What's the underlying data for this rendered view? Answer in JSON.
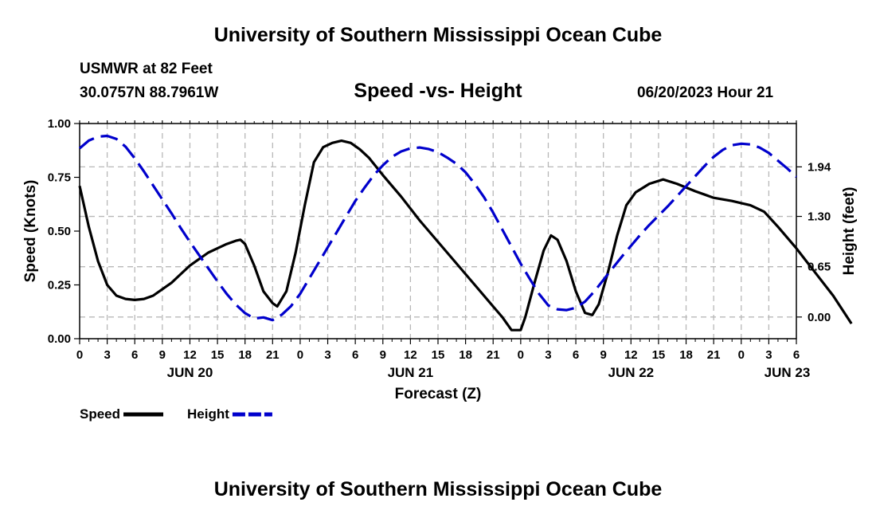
{
  "header": {
    "title": "University of Southern Mississippi Ocean Cube",
    "station": "USMWR at 82 Feet",
    "coords": "30.0757N  88.7961W",
    "subtitle": "Speed -vs- Height",
    "datetime": "06/20/2023 Hour 21"
  },
  "footer": {
    "title": "University of Southern Mississippi Ocean Cube"
  },
  "chart_data": {
    "type": "line",
    "title": "Speed -vs- Height",
    "xlabel": "Forecast (Z)",
    "ylabel": "Speed (Knots)",
    "y2label": "Height (feet)",
    "x_range_hours": [
      0,
      78
    ],
    "ylim": [
      0,
      1
    ],
    "y2lim": [
      -0.28,
      2.5
    ],
    "grid": true,
    "x_ticks": [
      {
        "h": 0,
        "label": "0"
      },
      {
        "h": 3,
        "label": "3"
      },
      {
        "h": 6,
        "label": "6"
      },
      {
        "h": 9,
        "label": "9"
      },
      {
        "h": 12,
        "label": "12"
      },
      {
        "h": 15,
        "label": "15"
      },
      {
        "h": 18,
        "label": "18"
      },
      {
        "h": 21,
        "label": "21"
      },
      {
        "h": 24,
        "label": "0"
      },
      {
        "h": 27,
        "label": "3"
      },
      {
        "h": 30,
        "label": "6"
      },
      {
        "h": 33,
        "label": "9"
      },
      {
        "h": 36,
        "label": "12"
      },
      {
        "h": 39,
        "label": "15"
      },
      {
        "h": 42,
        "label": "18"
      },
      {
        "h": 45,
        "label": "21"
      },
      {
        "h": 48,
        "label": "0"
      },
      {
        "h": 51,
        "label": "3"
      },
      {
        "h": 54,
        "label": "6"
      },
      {
        "h": 57,
        "label": "9"
      },
      {
        "h": 60,
        "label": "12"
      },
      {
        "h": 63,
        "label": "15"
      },
      {
        "h": 66,
        "label": "18"
      },
      {
        "h": 69,
        "label": "21"
      },
      {
        "h": 72,
        "label": "0"
      },
      {
        "h": 75,
        "label": "3"
      },
      {
        "h": 78,
        "label": "6"
      }
    ],
    "date_labels": [
      {
        "h": 12,
        "label": "JUN 20"
      },
      {
        "h": 36,
        "label": "JUN 21"
      },
      {
        "h": 60,
        "label": "JUN 22"
      },
      {
        "h": 77,
        "label": "JUN 23"
      }
    ],
    "y_ticks": [
      {
        "v": 0,
        "label": "0.00"
      },
      {
        "v": 0.25,
        "label": "0.25"
      },
      {
        "v": 0.5,
        "label": "0.50"
      },
      {
        "v": 0.75,
        "label": "0.75"
      },
      {
        "v": 1,
        "label": "1.00"
      }
    ],
    "y2_ticks": [
      {
        "v": 0,
        "label": "0.00"
      },
      {
        "v": 0.65,
        "label": "0.65"
      },
      {
        "v": 1.3,
        "label": "1.30"
      },
      {
        "v": 1.94,
        "label": "1.94"
      }
    ],
    "series": [
      {
        "name": "Speed",
        "axis": "left",
        "color": "#000000",
        "dash": "solid",
        "points": [
          [
            0,
            0.71
          ],
          [
            1,
            0.52
          ],
          [
            2,
            0.36
          ],
          [
            3,
            0.25
          ],
          [
            4,
            0.2
          ],
          [
            5,
            0.185
          ],
          [
            6,
            0.18
          ],
          [
            7,
            0.185
          ],
          [
            8,
            0.2
          ],
          [
            9,
            0.23
          ],
          [
            10,
            0.26
          ],
          [
            11,
            0.3
          ],
          [
            12,
            0.34
          ],
          [
            13,
            0.37
          ],
          [
            14,
            0.4
          ],
          [
            15,
            0.42
          ],
          [
            16,
            0.44
          ],
          [
            17,
            0.455
          ],
          [
            17.5,
            0.46
          ],
          [
            18,
            0.44
          ],
          [
            19,
            0.34
          ],
          [
            20,
            0.22
          ],
          [
            21,
            0.165
          ],
          [
            21.5,
            0.15
          ],
          [
            22.5,
            0.22
          ],
          [
            23.5,
            0.4
          ],
          [
            24.5,
            0.62
          ],
          [
            25.5,
            0.82
          ],
          [
            26.5,
            0.89
          ],
          [
            27.5,
            0.91
          ],
          [
            28.5,
            0.92
          ],
          [
            29.5,
            0.91
          ],
          [
            30.5,
            0.88
          ],
          [
            31.5,
            0.84
          ],
          [
            33,
            0.76
          ],
          [
            35,
            0.66
          ],
          [
            37,
            0.55
          ],
          [
            39,
            0.45
          ],
          [
            41,
            0.35
          ],
          [
            43,
            0.25
          ],
          [
            45,
            0.15
          ],
          [
            46,
            0.1
          ],
          [
            47,
            0.04
          ],
          [
            48,
            0.04
          ],
          [
            48.5,
            0.1
          ],
          [
            49.5,
            0.26
          ],
          [
            50.5,
            0.41
          ],
          [
            51.3,
            0.48
          ],
          [
            52,
            0.46
          ],
          [
            53,
            0.36
          ],
          [
            54,
            0.22
          ],
          [
            55,
            0.12
          ],
          [
            55.8,
            0.11
          ],
          [
            56.5,
            0.16
          ],
          [
            57.5,
            0.31
          ],
          [
            58.5,
            0.48
          ],
          [
            59.5,
            0.62
          ],
          [
            60.5,
            0.68
          ],
          [
            62,
            0.72
          ],
          [
            63.5,
            0.74
          ],
          [
            65,
            0.72
          ],
          [
            67,
            0.685
          ],
          [
            69,
            0.655
          ],
          [
            71,
            0.64
          ],
          [
            73,
            0.62
          ],
          [
            74.5,
            0.59
          ],
          [
            76,
            0.52
          ],
          [
            78,
            0.42
          ],
          [
            80,
            0.31
          ],
          [
            82,
            0.2
          ],
          [
            84,
            0.07
          ]
        ]
      },
      {
        "name": "Height",
        "axis": "right",
        "color": "#0000cc",
        "dash": "dashed",
        "points": [
          [
            0,
            2.18
          ],
          [
            1,
            2.28
          ],
          [
            2,
            2.33
          ],
          [
            3,
            2.34
          ],
          [
            4,
            2.3
          ],
          [
            5,
            2.2
          ],
          [
            6,
            2.05
          ],
          [
            7,
            1.88
          ],
          [
            8,
            1.7
          ],
          [
            9,
            1.52
          ],
          [
            10,
            1.34
          ],
          [
            11,
            1.15
          ],
          [
            12,
            0.97
          ],
          [
            13,
            0.8
          ],
          [
            14,
            0.63
          ],
          [
            15,
            0.46
          ],
          [
            16,
            0.3
          ],
          [
            17,
            0.16
          ],
          [
            18,
            0.05
          ],
          [
            19,
            -0.02
          ],
          [
            20,
            -0.005
          ],
          [
            21,
            -0.04
          ],
          [
            22,
            0.03
          ],
          [
            23,
            0.14
          ],
          [
            24,
            0.3
          ],
          [
            25,
            0.5
          ],
          [
            26,
            0.7
          ],
          [
            27,
            0.9
          ],
          [
            28,
            1.1
          ],
          [
            29,
            1.3
          ],
          [
            30,
            1.5
          ],
          [
            31,
            1.67
          ],
          [
            32,
            1.83
          ],
          [
            33,
            1.96
          ],
          [
            34,
            2.07
          ],
          [
            35,
            2.14
          ],
          [
            36,
            2.18
          ],
          [
            37,
            2.19
          ],
          [
            38,
            2.17
          ],
          [
            39,
            2.13
          ],
          [
            40,
            2.06
          ],
          [
            41,
            1.98
          ],
          [
            42,
            1.87
          ],
          [
            43,
            1.72
          ],
          [
            44,
            1.55
          ],
          [
            45,
            1.35
          ],
          [
            46,
            1.13
          ],
          [
            47,
            0.91
          ],
          [
            48,
            0.69
          ],
          [
            49,
            0.49
          ],
          [
            50,
            0.3
          ],
          [
            51,
            0.15
          ],
          [
            52,
            0.1
          ],
          [
            53,
            0.09
          ],
          [
            54,
            0.12
          ],
          [
            55,
            0.2
          ],
          [
            56,
            0.33
          ],
          [
            57,
            0.48
          ],
          [
            58,
            0.63
          ],
          [
            59,
            0.78
          ],
          [
            60,
            0.92
          ],
          [
            61,
            1.06
          ],
          [
            62,
            1.19
          ],
          [
            63,
            1.31
          ],
          [
            64,
            1.43
          ],
          [
            65,
            1.56
          ],
          [
            66,
            1.69
          ],
          [
            67,
            1.82
          ],
          [
            68,
            1.95
          ],
          [
            69,
            2.07
          ],
          [
            70,
            2.16
          ],
          [
            71,
            2.22
          ],
          [
            72,
            2.24
          ],
          [
            73,
            2.23
          ],
          [
            74,
            2.19
          ],
          [
            75,
            2.12
          ],
          [
            76,
            2.02
          ],
          [
            77,
            1.92
          ],
          [
            78,
            1.81
          ]
        ]
      }
    ],
    "legend": [
      {
        "label": "Speed",
        "color": "#000000",
        "dash": "solid"
      },
      {
        "label": "Height",
        "color": "#0000cc",
        "dash": "dashed"
      }
    ]
  }
}
